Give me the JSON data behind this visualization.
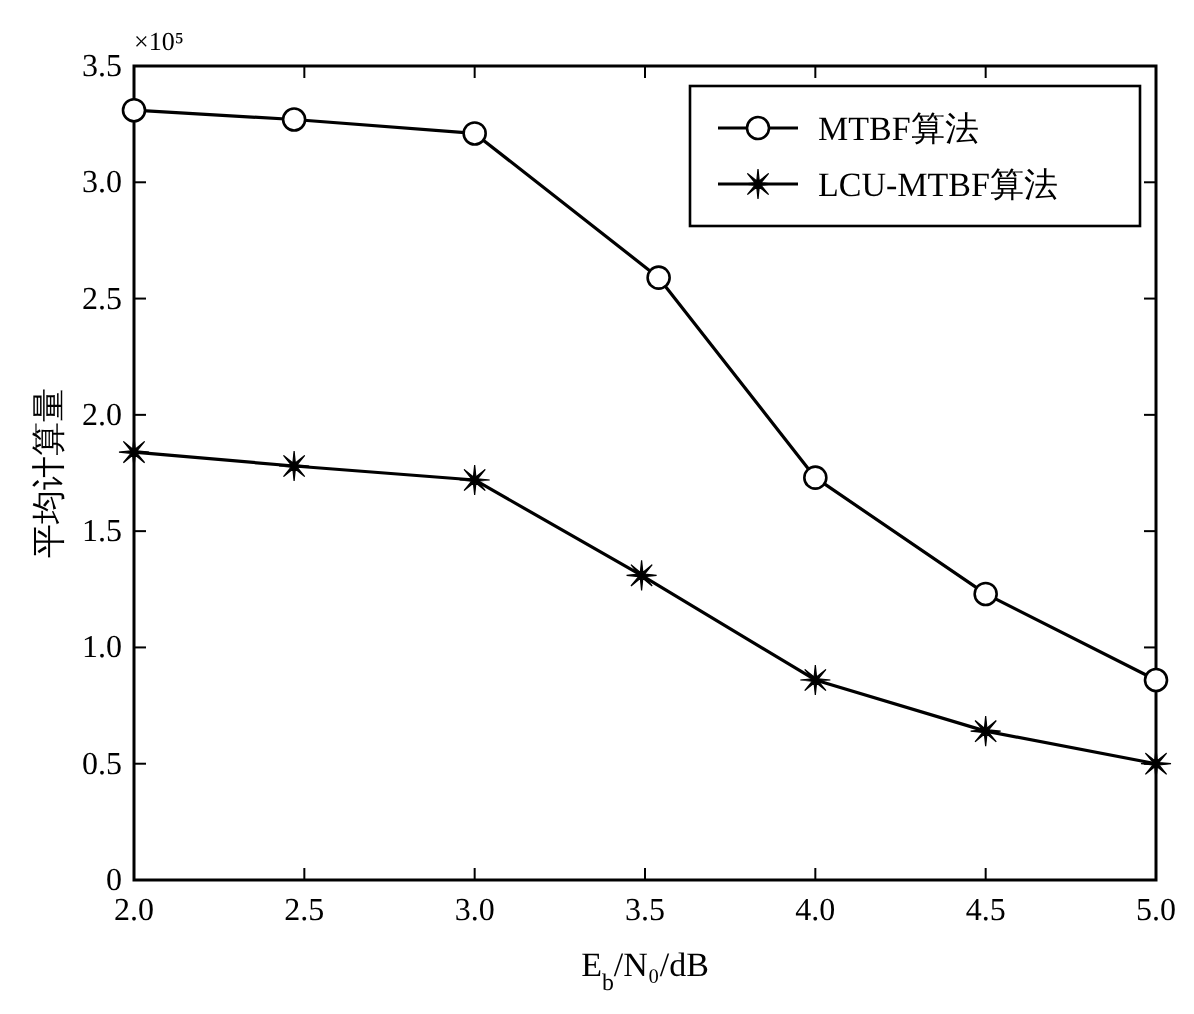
{
  "chart_data": {
    "type": "line",
    "xlabel": "E$_{b}$/N₀/dB",
    "ylabel": "平均计算量",
    "annotations": [
      "×10⁵"
    ],
    "xlim": [
      2.0,
      5.0
    ],
    "xticks": [
      {
        "value": 2.0,
        "label": "2.0"
      },
      {
        "value": 2.5,
        "label": "2.5"
      },
      {
        "value": 3.0,
        "label": "3.0"
      },
      {
        "value": 3.5,
        "label": "3.5"
      },
      {
        "value": 4.0,
        "label": "4.0"
      },
      {
        "value": 4.5,
        "label": "4.5"
      },
      {
        "value": 5.0,
        "label": "5.0"
      }
    ],
    "ylim": [
      0,
      3.5
    ],
    "yticks": [
      0,
      {
        "value": 0.5,
        "label": "0.5"
      },
      {
        "value": 1.0,
        "label": "1.0"
      },
      {
        "value": 1.5,
        "label": "1.5"
      },
      {
        "value": 2.0,
        "label": "2.0"
      },
      {
        "value": 2.5,
        "label": "2.5"
      },
      {
        "value": 3.0,
        "label": "3.0"
      },
      {
        "value": 3.5,
        "label": "3.5"
      }
    ],
    "grid": false,
    "legend": "top right",
    "line_style": "solid",
    "series": [
      {
        "name": "MTBF算法",
        "color": "#000000",
        "marker": "circle",
        "x": [
          2.0,
          2.47,
          3.0,
          3.54,
          4.0,
          4.5,
          5.0
        ],
        "values": [
          3.31,
          3.27,
          3.21,
          2.59,
          1.73,
          1.23,
          0.86
        ]
      },
      {
        "name": "LCU-MTBF算法",
        "color": "#000000",
        "marker": "star",
        "x": [
          2.0,
          2.47,
          3.0,
          3.49,
          4.0,
          4.5,
          5.0
        ],
        "values": [
          1.84,
          1.78,
          1.72,
          1.31,
          0.86,
          0.64,
          0.5
        ]
      }
    ]
  }
}
